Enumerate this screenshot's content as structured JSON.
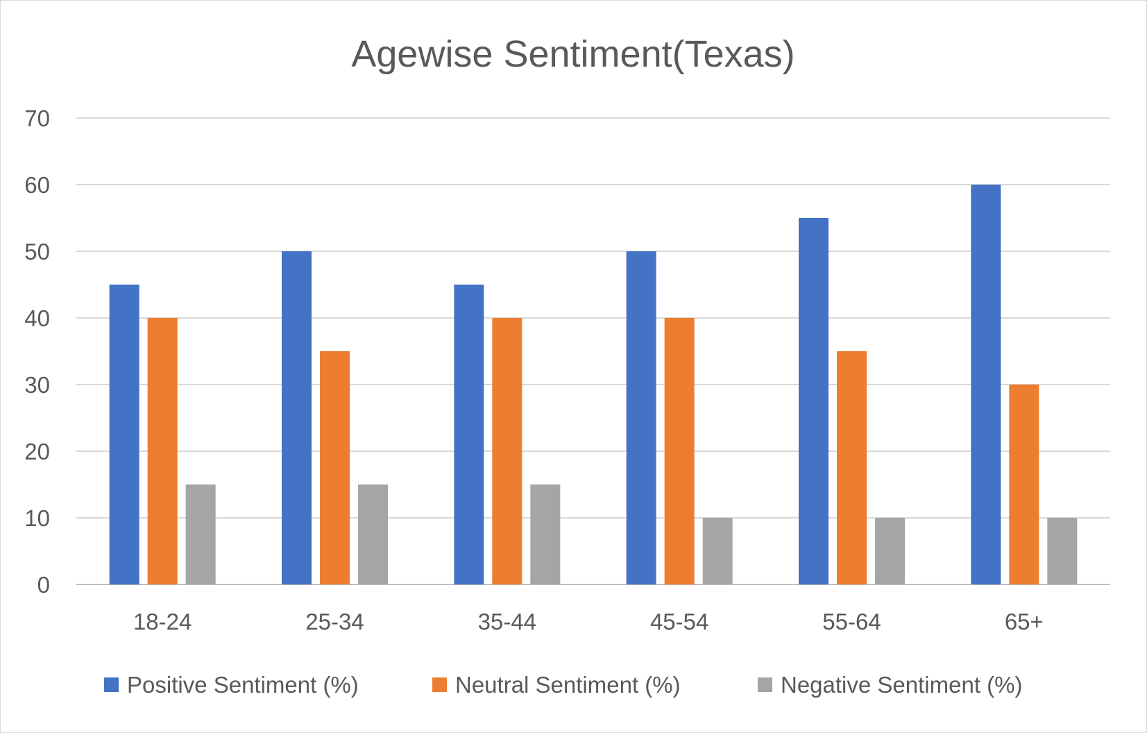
{
  "chart_data": {
    "type": "bar",
    "title": "Agewise Sentiment(Texas)",
    "xlabel": "",
    "ylabel": "",
    "categories": [
      "18-24",
      "25-34",
      "35-44",
      "45-54",
      "55-64",
      "65+"
    ],
    "series": [
      {
        "name": "Positive Sentiment (%)",
        "values": [
          45,
          50,
          45,
          50,
          55,
          60
        ],
        "color": "#4472C4"
      },
      {
        "name": "Neutral Sentiment (%)",
        "values": [
          40,
          35,
          40,
          40,
          35,
          30
        ],
        "color": "#ED7D31"
      },
      {
        "name": "Negative Sentiment (%)",
        "values": [
          15,
          15,
          15,
          10,
          10,
          10
        ],
        "color": "#A5A5A5"
      }
    ],
    "ylim": [
      0,
      70
    ],
    "yticks": [
      "0",
      "10",
      "20",
      "30",
      "40",
      "50",
      "60",
      "70"
    ],
    "grid": true,
    "legend_position": "bottom",
    "gridline_color": "#d9d9d9",
    "axis_color": "#bfbfbf"
  }
}
